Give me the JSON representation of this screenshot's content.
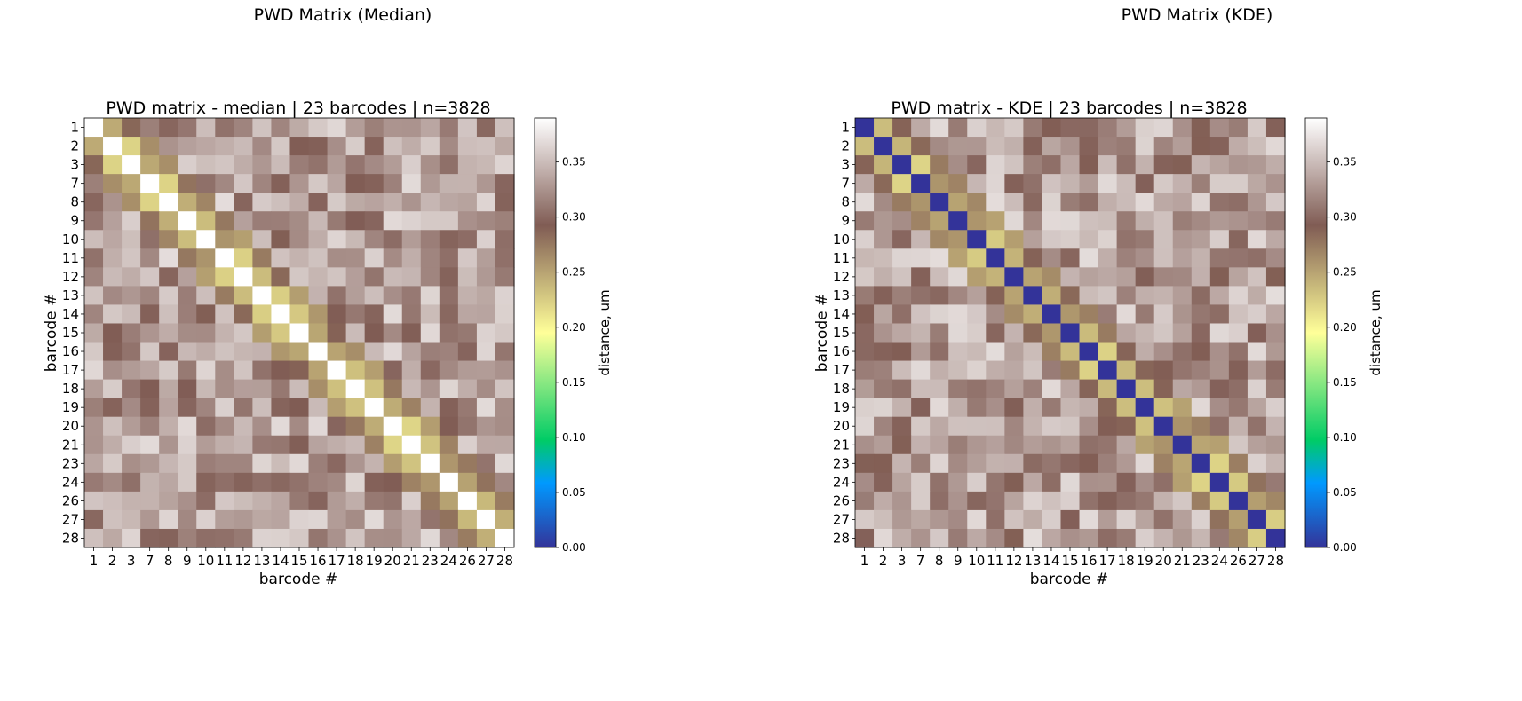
{
  "figure_titles": [
    "PWD Matrix (Median)",
    "PWD Matrix (KDE)"
  ],
  "chart_data": [
    {
      "type": "heatmap",
      "title": "PWD matrix - median | 23 barcodes | n=3828",
      "xlabel": "barcode #",
      "ylabel": "barcode #",
      "categories": [
        "1",
        "2",
        "3",
        "7",
        "8",
        "9",
        "10",
        "11",
        "12",
        "13",
        "14",
        "15",
        "16",
        "17",
        "18",
        "19",
        "20",
        "21",
        "23",
        "24",
        "26",
        "27",
        "28"
      ],
      "diagonal": "max",
      "colorbar": {
        "label": "distance, um",
        "range": [
          0,
          0.39
        ],
        "ticks": [
          "0.00",
          "0.05",
          "0.10",
          "0.15",
          "0.20",
          "0.25",
          "0.30",
          "0.35"
        ]
      },
      "colormap": "terrain",
      "seed": 11
    },
    {
      "type": "heatmap",
      "title": "PWD matrix - KDE | 23 barcodes | n=3828",
      "xlabel": "barcode #",
      "ylabel": "barcode #",
      "categories": [
        "1",
        "2",
        "3",
        "7",
        "8",
        "9",
        "10",
        "11",
        "12",
        "13",
        "14",
        "15",
        "16",
        "17",
        "18",
        "19",
        "20",
        "21",
        "23",
        "24",
        "26",
        "27",
        "28"
      ],
      "diagonal": "zero",
      "colorbar": {
        "label": "distance, um",
        "range": [
          0,
          0.39
        ],
        "ticks": [
          "0.00",
          "0.05",
          "0.10",
          "0.15",
          "0.20",
          "0.25",
          "0.30",
          "0.35"
        ]
      },
      "colormap": "terrain",
      "seed": 29
    }
  ]
}
